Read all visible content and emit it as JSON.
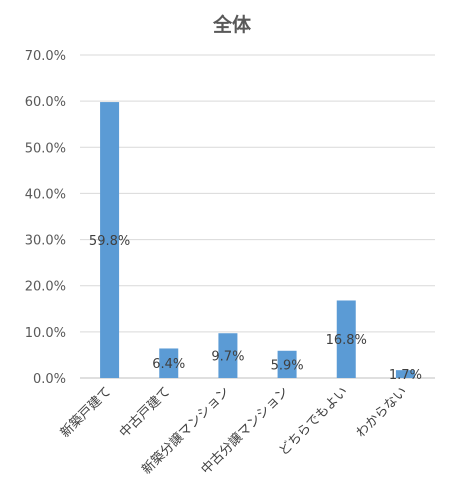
{
  "chart_data": {
    "type": "bar",
    "title": "全体",
    "categories": [
      "新築戸建て",
      "中古戸建て",
      "新築分譲マンション",
      "中古分譲マンション",
      "どちらでもよい",
      "わからない"
    ],
    "values": [
      59.8,
      6.4,
      9.7,
      5.9,
      16.8,
      1.7
    ],
    "data_labels": [
      "59.8%",
      "6.4%",
      "9.7%",
      "5.9%",
      "16.8%",
      "1.7%"
    ],
    "ylim": [
      0,
      70
    ],
    "yticks": [
      "0.0%",
      "10.0%",
      "20.0%",
      "30.0%",
      "40.0%",
      "50.0%",
      "60.0%",
      "70.0%"
    ],
    "grid": true,
    "legend": "none",
    "bar_color": "#5b9bd5"
  }
}
